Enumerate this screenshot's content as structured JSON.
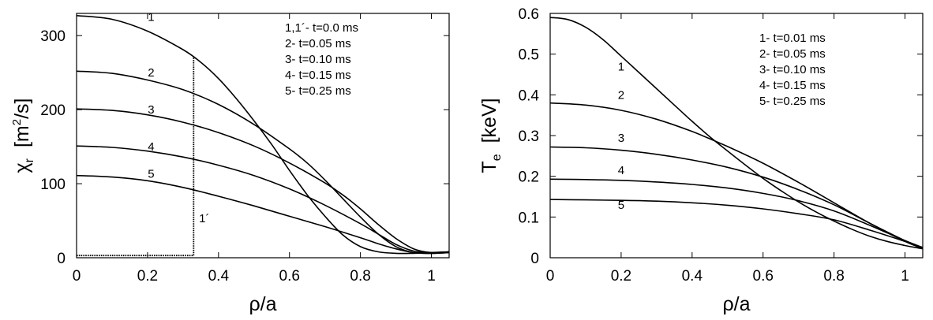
{
  "chart_data": [
    {
      "type": "line",
      "title": "",
      "xlabel": "ρ/a",
      "ylabel": "χ",
      "ylabel_sub": "r",
      "ylabel_units_pre": "[m",
      "ylabel_units_sup": "2",
      "ylabel_units_post": "/s]",
      "xlim": [
        0,
        1.05
      ],
      "ylim": [
        0,
        330
      ],
      "xticks": [
        0,
        0.2,
        0.4,
        0.6,
        0.8,
        1
      ],
      "xtick_labels": [
        "0",
        "0.2",
        "0.4",
        "0.6",
        "0.8",
        "1"
      ],
      "yticks": [
        0,
        100,
        200,
        300
      ],
      "ytick_labels": [
        "0",
        "100",
        "200",
        "300"
      ],
      "legend": [
        "1,1´- t=0.0 ms",
        "2- t=0.05 ms",
        "3- t=0.10 ms",
        "4- t=0.15 ms",
        "5- t=0.25 ms"
      ],
      "legend_position": "top-right",
      "series": [
        {
          "name": "1",
          "label": "1",
          "label_at": [
            0.21,
            320
          ],
          "x": [
            0,
            0.1,
            0.2,
            0.3,
            0.35,
            0.4,
            0.45,
            0.5,
            0.55,
            0.6,
            0.65,
            0.7,
            0.75,
            0.8,
            0.85,
            0.9,
            0.95,
            1.0,
            1.05
          ],
          "y": [
            327,
            322,
            306,
            281,
            264,
            242,
            215,
            185,
            153,
            118,
            85,
            56,
            31,
            15,
            8,
            6,
            6,
            7,
            8
          ]
        },
        {
          "name": "2",
          "label": "2",
          "label_at": [
            0.21,
            245
          ],
          "x": [
            0,
            0.1,
            0.2,
            0.3,
            0.4,
            0.5,
            0.6,
            0.65,
            0.7,
            0.75,
            0.8,
            0.85,
            0.9,
            0.95,
            1.0,
            1.05
          ],
          "y": [
            252,
            249,
            240,
            227,
            207,
            180,
            147,
            128,
            105,
            80,
            55,
            32,
            15,
            7,
            6,
            7
          ]
        },
        {
          "name": "3",
          "label": "3",
          "label_at": [
            0.21,
            195
          ],
          "x": [
            0,
            0.1,
            0.2,
            0.3,
            0.4,
            0.5,
            0.6,
            0.7,
            0.75,
            0.8,
            0.85,
            0.9,
            0.95,
            1.0,
            1.05
          ],
          "y": [
            201,
            199,
            193,
            183,
            169,
            151,
            128,
            101,
            85,
            66,
            45,
            26,
            12,
            7,
            8
          ]
        },
        {
          "name": "4",
          "label": "4",
          "label_at": [
            0.21,
            145
          ],
          "x": [
            0,
            0.1,
            0.2,
            0.3,
            0.4,
            0.5,
            0.6,
            0.7,
            0.8,
            0.85,
            0.9,
            0.95,
            1.0,
            1.05
          ],
          "y": [
            151,
            149,
            144,
            136,
            125,
            111,
            93,
            71,
            46,
            32,
            18,
            9,
            7,
            8
          ]
        },
        {
          "name": "5",
          "label": "5",
          "label_at": [
            0.21,
            108
          ],
          "x": [
            0,
            0.1,
            0.2,
            0.3,
            0.4,
            0.5,
            0.6,
            0.7,
            0.8,
            0.85,
            0.9,
            0.95,
            1.0,
            1.05
          ],
          "y": [
            111,
            109,
            104,
            95,
            83,
            70,
            56,
            42,
            27,
            19,
            12,
            7,
            6,
            7
          ]
        },
        {
          "name": "1´",
          "label": "1´",
          "label_at": [
            0.36,
            48
          ],
          "dotted": true,
          "x": [
            0,
            0.33,
            0.33
          ],
          "y": [
            3,
            3,
            272
          ]
        }
      ]
    },
    {
      "type": "line",
      "title": "",
      "xlabel": "ρ/a",
      "ylabel": "T",
      "ylabel_sub": "e",
      "ylabel_units_pre": "[keV]",
      "ylabel_units_sup": "",
      "ylabel_units_post": "",
      "xlim": [
        0,
        1.05
      ],
      "ylim": [
        0,
        0.6
      ],
      "xticks": [
        0,
        0.2,
        0.4,
        0.6,
        0.8,
        1
      ],
      "xtick_labels": [
        "0",
        "0.2",
        "0.4",
        "0.6",
        "0.8",
        "1"
      ],
      "yticks": [
        0,
        0.1,
        0.2,
        0.3,
        0.4,
        0.5,
        0.6
      ],
      "ytick_labels": [
        "0",
        "0.1",
        "0.2",
        "0.3",
        "0.4",
        "0.5",
        "0.6"
      ],
      "legend": [
        "1- t=0.01 ms",
        "2- t=0.05 ms",
        "3- t=0.10 ms",
        "4- t=0.15 ms",
        "5- t=0.25 ms"
      ],
      "legend_position": "top-right",
      "series": [
        {
          "name": "1",
          "label": "1",
          "label_at": [
            0.2,
            0.46
          ],
          "x": [
            0,
            0.05,
            0.1,
            0.15,
            0.2,
            0.25,
            0.3,
            0.35,
            0.4,
            0.45,
            0.5,
            0.55,
            0.6,
            0.65,
            0.7,
            0.75,
            0.8,
            0.85,
            0.9,
            0.95,
            1.0,
            1.05
          ],
          "y": [
            0.59,
            0.585,
            0.566,
            0.535,
            0.495,
            0.455,
            0.415,
            0.375,
            0.335,
            0.297,
            0.262,
            0.228,
            0.195,
            0.165,
            0.137,
            0.112,
            0.09,
            0.07,
            0.053,
            0.04,
            0.03,
            0.022
          ]
        },
        {
          "name": "2",
          "label": "2",
          "label_at": [
            0.2,
            0.39
          ],
          "x": [
            0,
            0.1,
            0.2,
            0.3,
            0.4,
            0.5,
            0.6,
            0.7,
            0.8,
            0.9,
            1.0,
            1.05
          ],
          "y": [
            0.38,
            0.375,
            0.362,
            0.34,
            0.31,
            0.273,
            0.232,
            0.185,
            0.135,
            0.085,
            0.04,
            0.023
          ]
        },
        {
          "name": "3",
          "label": "3",
          "label_at": [
            0.2,
            0.285
          ],
          "x": [
            0,
            0.1,
            0.2,
            0.3,
            0.4,
            0.5,
            0.6,
            0.7,
            0.8,
            0.9,
            1.0,
            1.05
          ],
          "y": [
            0.272,
            0.27,
            0.264,
            0.254,
            0.24,
            0.222,
            0.198,
            0.167,
            0.13,
            0.085,
            0.042,
            0.025
          ]
        },
        {
          "name": "4",
          "label": "4",
          "label_at": [
            0.2,
            0.205
          ],
          "x": [
            0,
            0.1,
            0.2,
            0.3,
            0.4,
            0.5,
            0.6,
            0.7,
            0.8,
            0.9,
            1.0,
            1.05
          ],
          "y": [
            0.193,
            0.192,
            0.19,
            0.186,
            0.18,
            0.171,
            0.158,
            0.14,
            0.115,
            0.08,
            0.042,
            0.025
          ]
        },
        {
          "name": "5",
          "label": "5",
          "label_at": [
            0.2,
            0.12
          ],
          "x": [
            0,
            0.1,
            0.2,
            0.3,
            0.4,
            0.5,
            0.6,
            0.7,
            0.8,
            0.9,
            1.0,
            1.05
          ],
          "y": [
            0.143,
            0.142,
            0.141,
            0.139,
            0.135,
            0.129,
            0.12,
            0.108,
            0.093,
            0.068,
            0.04,
            0.025
          ]
        }
      ]
    }
  ]
}
